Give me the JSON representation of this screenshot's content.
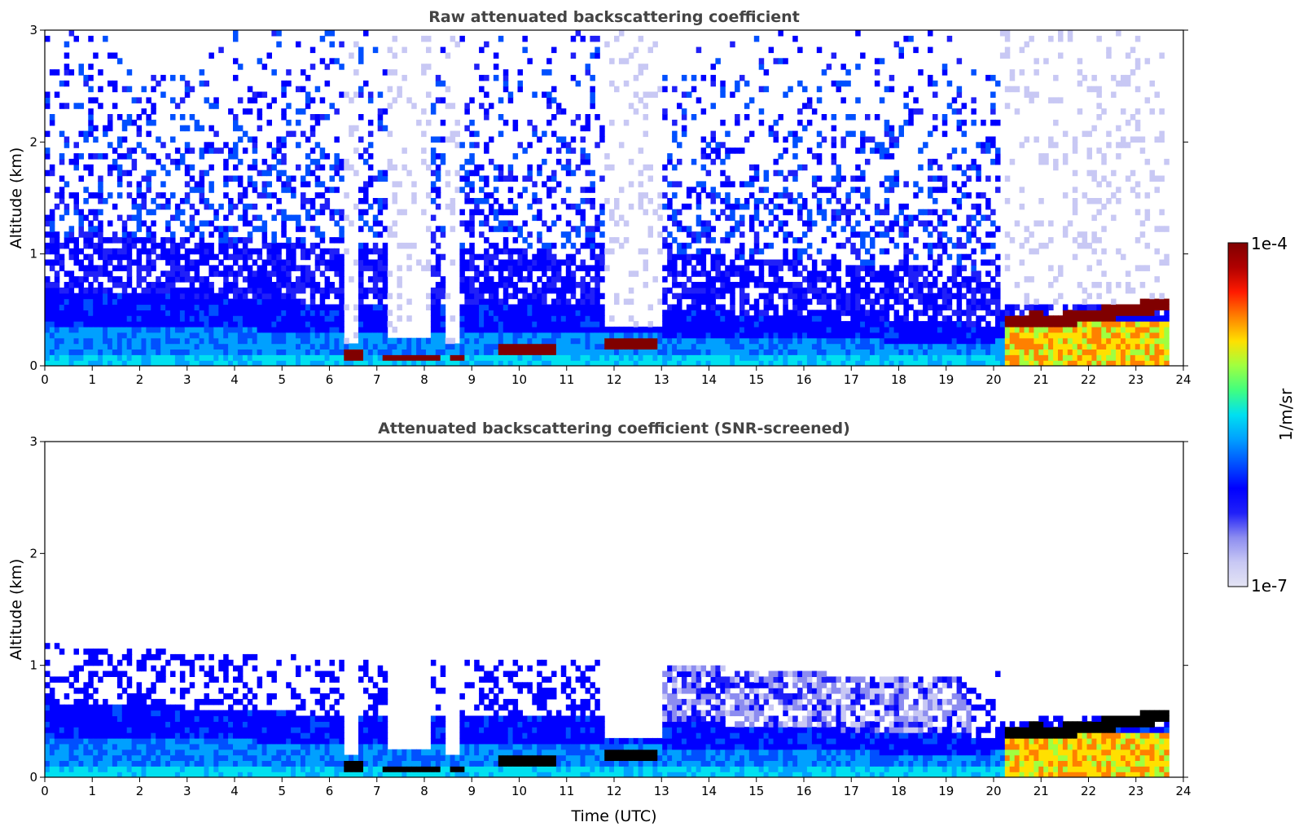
{
  "chart_data": [
    {
      "type": "heatmap",
      "title": "Raw attenuated backscattering coefficient",
      "xlabel": "",
      "ylabel": "Altitude (km)",
      "xlim": [
        0,
        24
      ],
      "ylim": [
        0,
        3
      ],
      "xticks": [
        "0",
        "1",
        "2",
        "3",
        "4",
        "5",
        "6",
        "7",
        "8",
        "9",
        "10",
        "11",
        "12",
        "13",
        "14",
        "15",
        "16",
        "17",
        "18",
        "19",
        "20",
        "21",
        "22",
        "23",
        "24"
      ],
      "yticks": [
        "0",
        "1",
        "2",
        "3"
      ],
      "data_end_time": 23.65,
      "screened": false,
      "features": [
        {
          "name": "boundary layer / aerosol",
          "x": [
            0,
            20
          ],
          "y_top": [
            0.65,
            0.35
          ]
        },
        {
          "name": "clouds",
          "segments": [
            [
              6.3,
              6.7,
              0.12
            ],
            [
              7.1,
              8.3,
              0.09
            ],
            [
              8.4,
              8.8,
              0.08
            ],
            [
              9.5,
              10.7,
              0.15
            ],
            [
              11.7,
              12.9,
              0.22
            ],
            [
              20.1,
              23.65,
              0.45
            ]
          ]
        },
        {
          "name": "clear gaps",
          "segments": [
            [
              6.2,
              6.65
            ],
            [
              7.2,
              8.1
            ],
            [
              8.4,
              8.7
            ],
            [
              11.7,
              13.0
            ],
            [
              20.0,
              23.65
            ]
          ]
        }
      ]
    },
    {
      "type": "heatmap",
      "title": "Attenuated backscattering coefficient (SNR-screened)",
      "xlabel": "Time (UTC)",
      "ylabel": "Altitude (km)",
      "xlim": [
        0,
        24
      ],
      "ylim": [
        0,
        3
      ],
      "xticks": [
        "0",
        "1",
        "2",
        "3",
        "4",
        "5",
        "6",
        "7",
        "8",
        "9",
        "10",
        "11",
        "12",
        "13",
        "14",
        "15",
        "16",
        "17",
        "18",
        "19",
        "20",
        "21",
        "22",
        "23",
        "24"
      ],
      "yticks": [
        "0",
        "1",
        "2",
        "3"
      ],
      "data_end_time": 23.65,
      "screened": true
    }
  ],
  "colorbar": {
    "label": "1/m/sr",
    "max_label": "1e-4",
    "min_label": "1e-7",
    "scale": "log",
    "range": [
      1e-07,
      0.0001
    ],
    "colors": [
      "#e4e4f4",
      "#c8c8f4",
      "#8c8cf0",
      "#2020f8",
      "#0000ff",
      "#0050ff",
      "#00a0ff",
      "#00e0f0",
      "#40ff80",
      "#a0ff40",
      "#ffe000",
      "#ff8000",
      "#ff1a00",
      "#b00000",
      "#800000"
    ]
  }
}
